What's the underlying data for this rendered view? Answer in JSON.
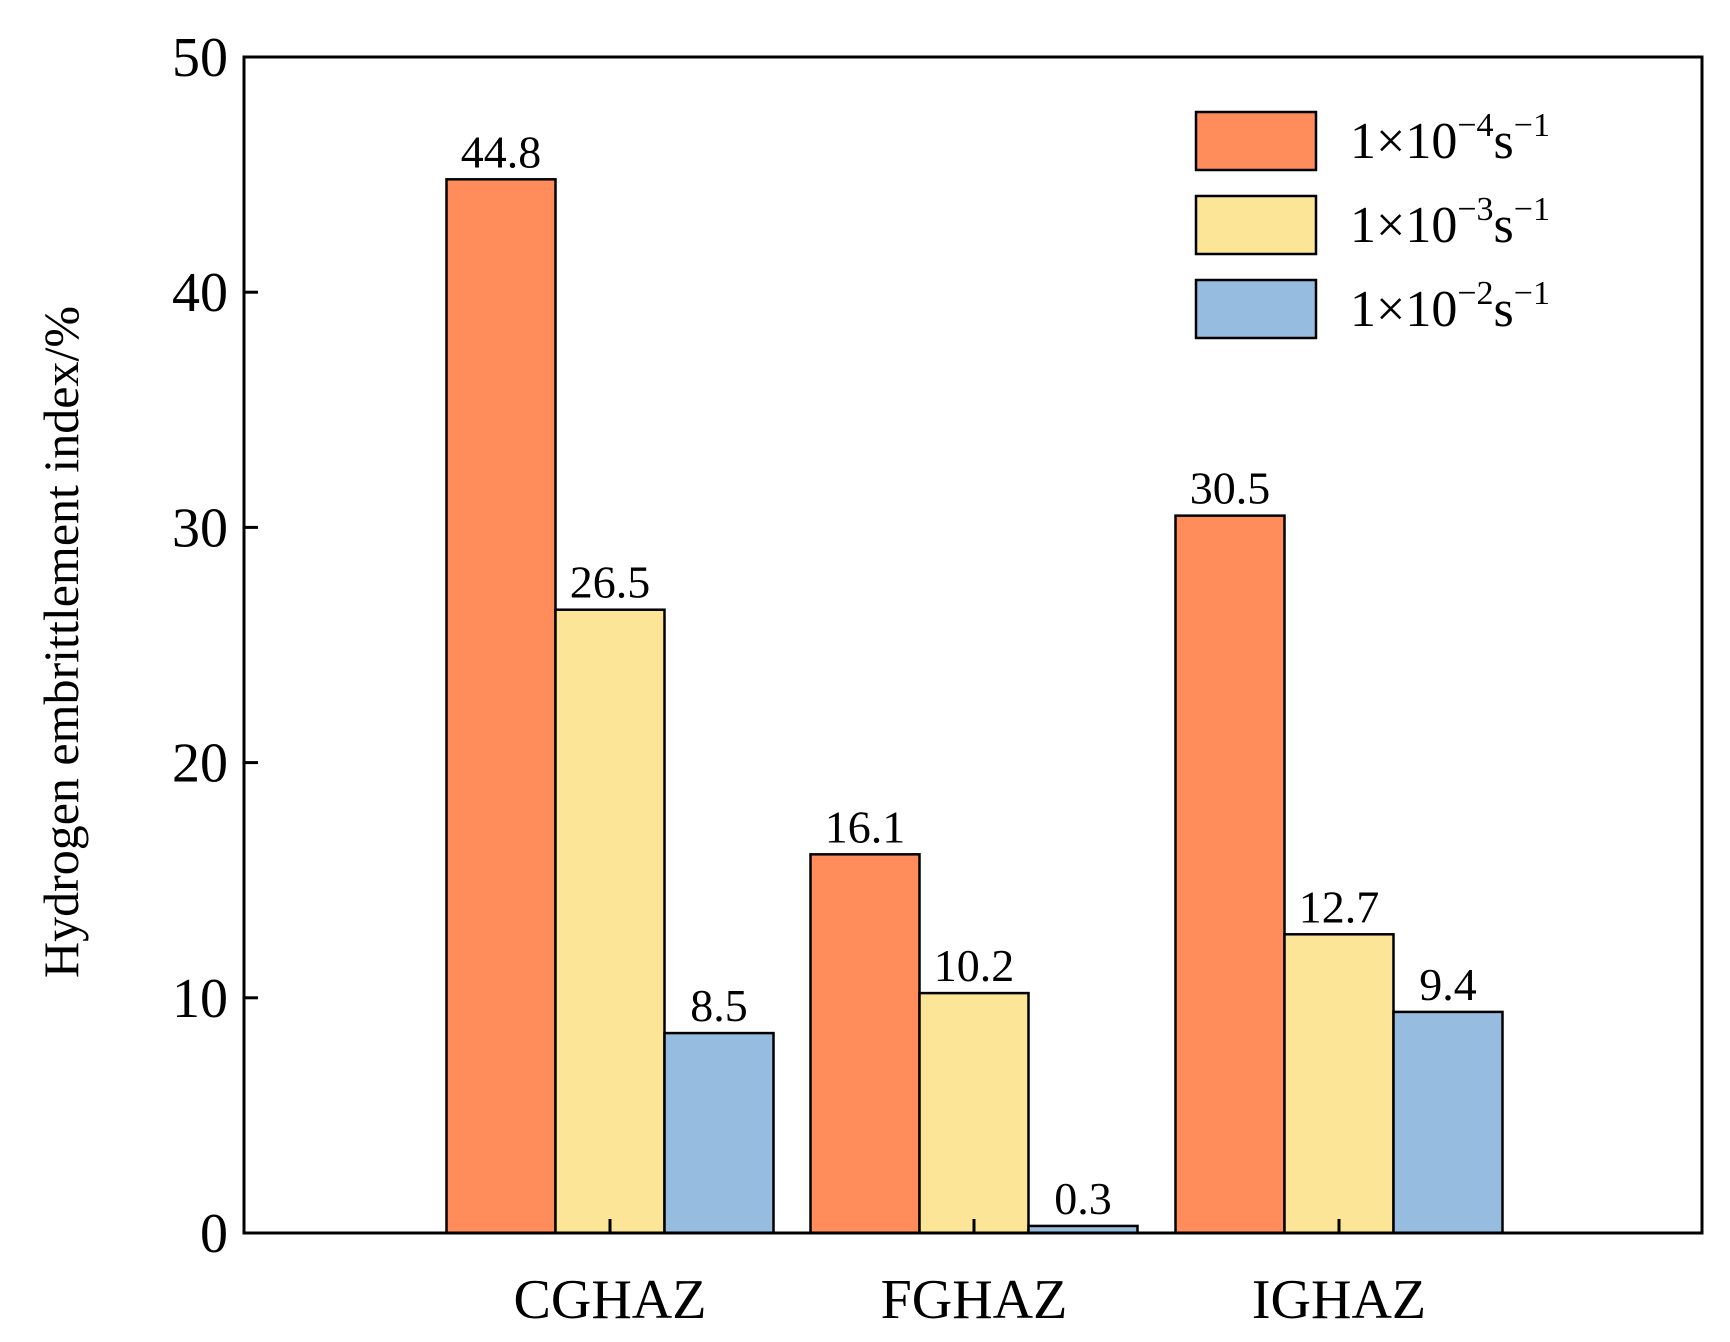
{
  "chart_data": {
    "type": "bar",
    "title": "",
    "xlabel": "",
    "ylabel": "Hydrogen embrittlement index/%",
    "ylim": [
      0,
      50
    ],
    "yticks": [
      0,
      10,
      20,
      30,
      40,
      50
    ],
    "categories": [
      "CGHAZ",
      "FGHAZ",
      "IGHAZ"
    ],
    "series": [
      {
        "name": "1×10⁻⁴s⁻¹",
        "base": "1×10",
        "exp": "−4",
        "unit": "s",
        "unit_exp": "−1",
        "color": "#FF8C5A",
        "values": [
          44.8,
          16.1,
          30.5
        ],
        "labels": [
          "44.8",
          "16.1",
          "30.5"
        ]
      },
      {
        "name": "1×10⁻³s⁻¹",
        "base": "1×10",
        "exp": "−3",
        "unit": "s",
        "unit_exp": "−1",
        "color": "#FCE596",
        "values": [
          26.5,
          10.2,
          12.7
        ],
        "labels": [
          "26.5",
          "10.2",
          "12.7"
        ]
      },
      {
        "name": "1×10⁻²s⁻¹",
        "base": "1×10",
        "exp": "−2",
        "unit": "s",
        "unit_exp": "−1",
        "color": "#96BDE0",
        "values": [
          8.5,
          0.3,
          9.4
        ],
        "labels": [
          "8.5",
          "0.3",
          "9.4"
        ]
      }
    ],
    "legend": "top-right",
    "grid": false
  }
}
